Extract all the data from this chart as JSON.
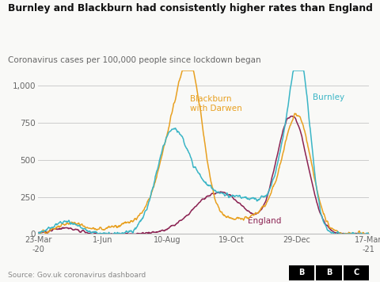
{
  "title": "Burnley and Blackburn had consistently higher rates than England",
  "subtitle": "Coronavirus cases per 100,000 people since lockdown began",
  "source": "Source: Gov.uk coronavirus dashboard",
  "colors": {
    "burnley": "#3ab5c6",
    "blackburn": "#e8a020",
    "england": "#8b2252"
  },
  "xtick_labels": [
    "23-Mar\n-20",
    "1-Jun",
    "10-Aug",
    "19-Oct",
    "29-Dec",
    "17-Mar\n-21"
  ],
  "ytick_labels": [
    "0",
    "250",
    "500",
    "750",
    "1,000"
  ],
  "ytick_values": [
    0,
    250,
    500,
    750,
    1000
  ],
  "ylim": [
    0,
    1100
  ],
  "xlim": [
    0,
    359
  ],
  "background": "#f9f9f7",
  "fig_background": "#f9f9f7",
  "xtick_days": [
    0,
    70,
    140,
    210,
    281,
    359
  ],
  "label_burnley": "Burnley",
  "label_blackburn": "Blackburn\nwith Darwen",
  "label_england": "England",
  "bbc_logo_letters": [
    "B",
    "B",
    "C"
  ]
}
